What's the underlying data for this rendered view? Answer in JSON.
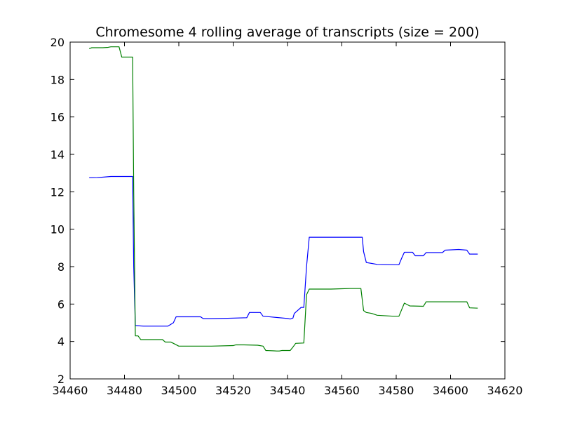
{
  "chart_data": {
    "type": "line",
    "title": "Chromesome 4 rolling average of transcripts (size = 200)",
    "xlabel": "",
    "ylabel": "",
    "xlim": [
      34460,
      34620
    ],
    "ylim": [
      2,
      20
    ],
    "xticks": [
      34460,
      34480,
      34500,
      34520,
      34540,
      34560,
      34580,
      34600,
      34620
    ],
    "yticks": [
      2,
      4,
      6,
      8,
      10,
      12,
      14,
      16,
      18,
      20
    ],
    "grid": false,
    "legend": "none",
    "series": [
      {
        "color": "#0000ff",
        "x": [
          34467,
          34470,
          34472,
          34475,
          34483,
          34483.4,
          34484,
          34487,
          34496,
          34498,
          34499,
          34508,
          34509,
          34512,
          34518,
          34525,
          34526,
          34530,
          34531,
          34540,
          34541,
          34542,
          34542.5,
          34545,
          34546,
          34547,
          34548,
          34560,
          34567.5,
          34568,
          34569,
          34573,
          34581,
          34582,
          34583,
          34586,
          34587,
          34590,
          34591,
          34597,
          34598,
          34603,
          34606,
          34607,
          34610
        ],
        "y": [
          12.75,
          12.76,
          12.78,
          12.82,
          12.82,
          8.0,
          4.85,
          4.82,
          4.82,
          5.0,
          5.32,
          5.32,
          5.22,
          5.22,
          5.24,
          5.27,
          5.55,
          5.55,
          5.35,
          5.23,
          5.2,
          5.25,
          5.5,
          5.82,
          5.82,
          8.0,
          9.57,
          9.57,
          9.57,
          8.8,
          8.22,
          8.12,
          8.1,
          8.45,
          8.77,
          8.77,
          8.58,
          8.58,
          8.75,
          8.75,
          8.88,
          8.92,
          8.88,
          8.67,
          8.67
        ]
      },
      {
        "color": "#008000",
        "x": [
          34467,
          34468,
          34472,
          34474,
          34475,
          34478,
          34479,
          34483,
          34483.4,
          34484,
          34485,
          34486,
          34490,
          34494,
          34495,
          34497,
          34498,
          34500,
          34505,
          34512,
          34520,
          34521,
          34524,
          34529,
          34531,
          34532,
          34535,
          34536,
          34537,
          34538,
          34541,
          34542,
          34543,
          34546,
          34547,
          34548,
          34550,
          34556,
          34560,
          34563,
          34566,
          34567,
          34568,
          34569,
          34571,
          34573,
          34579,
          34581,
          34582,
          34583,
          34585,
          34590,
          34591,
          34598,
          34606,
          34607,
          34610
        ],
        "y": [
          19.65,
          19.7,
          19.7,
          19.72,
          19.75,
          19.75,
          19.2,
          19.2,
          12.0,
          4.3,
          4.3,
          4.1,
          4.1,
          4.1,
          3.97,
          3.97,
          3.9,
          3.75,
          3.75,
          3.75,
          3.78,
          3.82,
          3.82,
          3.8,
          3.75,
          3.52,
          3.5,
          3.49,
          3.49,
          3.52,
          3.52,
          3.7,
          3.9,
          3.92,
          6.5,
          6.8,
          6.8,
          6.8,
          6.82,
          6.83,
          6.83,
          6.83,
          5.65,
          5.55,
          5.5,
          5.4,
          5.35,
          5.35,
          5.7,
          6.05,
          5.9,
          5.88,
          6.12,
          6.12,
          6.12,
          5.8,
          5.78
        ]
      }
    ]
  }
}
